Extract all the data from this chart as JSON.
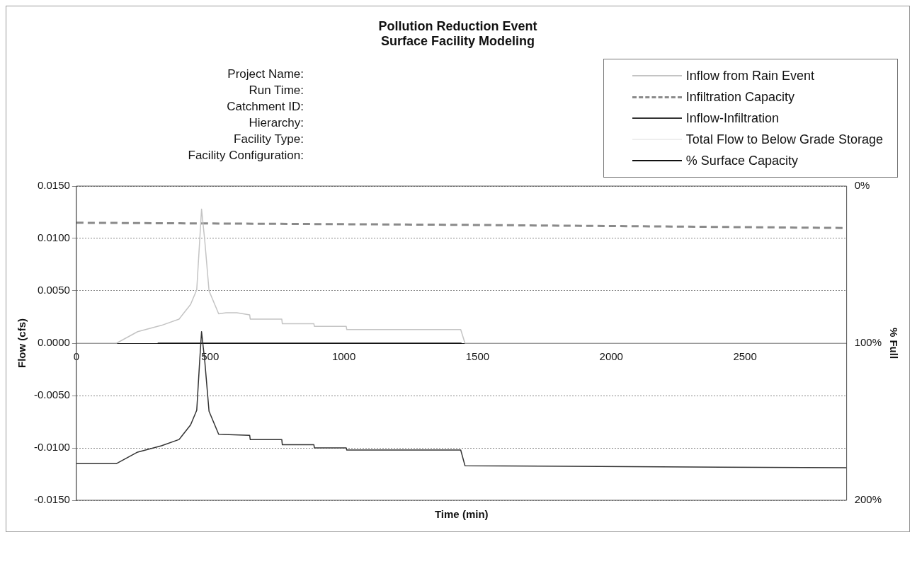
{
  "chart_data": {
    "type": "line",
    "title": "Pollution Reduction Event",
    "subtitle": "Surface Facility Modeling",
    "annotations": [
      "Project Name:",
      "Run Time:",
      "Catchment ID:",
      "Hierarchy:",
      "Facility Type:",
      "Facility Configuration:"
    ],
    "xlabel": "Time (min)",
    "ylabel": "Flow (cfs)",
    "y2label": "% Full",
    "xlim": [
      0,
      2880
    ],
    "xticks": [
      0,
      500,
      1000,
      1500,
      2000,
      2500
    ],
    "ylim": [
      -0.015,
      0.015
    ],
    "yticks": [
      {
        "value": -0.015,
        "label": "-0.0150"
      },
      {
        "value": -0.01,
        "label": "-0.0100"
      },
      {
        "value": -0.005,
        "label": "-0.0050"
      },
      {
        "value": 0,
        "label": "0.0000"
      },
      {
        "value": 0.005,
        "label": "0.0050"
      },
      {
        "value": 0.01,
        "label": "0.0100"
      },
      {
        "value": 0.015,
        "label": "0.0150"
      }
    ],
    "y2lim": [
      200,
      0
    ],
    "y2ticks": [
      {
        "value": 0,
        "label": "0%"
      },
      {
        "value": 100,
        "label": "100%"
      },
      {
        "value": 200,
        "label": "200%"
      }
    ],
    "grid": "y",
    "legend": "top right",
    "marker": "none",
    "series": [
      {
        "name": "Inflow from Rain Event",
        "color": "#c4c4c4",
        "x": [
          0,
          150,
          229,
          318,
          384,
          427,
          450,
          461,
          468,
          480,
          496,
          532,
          560,
          600,
          648,
          650,
          768,
          770,
          888,
          890,
          1009,
          1011,
          1437,
          1453,
          2880
        ],
        "values": [
          0,
          0,
          0.0011,
          0.0017,
          0.0023,
          0.0037,
          0.0051,
          0.0098,
          0.0128,
          0.0098,
          0.005,
          0.0028,
          0.0029,
          0.0029,
          0.0027,
          0.0023,
          0.0023,
          0.00185,
          0.00185,
          0.0016,
          0.0016,
          0.0013,
          0.0013,
          0,
          0
        ]
      },
      {
        "name": "Infiltration Capacity",
        "color": "#8a8a8a",
        "line_style": "dashed",
        "x": [
          0,
          1440,
          2880
        ],
        "values": [
          0.0115,
          0.0113,
          0.011
        ]
      },
      {
        "name": "Inflow-Infiltration",
        "color": "#333333",
        "x": [
          0,
          150,
          229,
          318,
          384,
          427,
          450,
          461,
          468,
          480,
          496,
          532,
          648,
          650,
          768,
          770,
          888,
          890,
          1009,
          1011,
          1437,
          1453,
          2880
        ],
        "values": [
          -0.0115,
          -0.0115,
          -0.0104,
          -0.0098,
          -0.0092,
          -0.0078,
          -0.0064,
          -0.0017,
          0.0011,
          -0.0017,
          -0.0065,
          -0.0087,
          -0.0088,
          -0.0092,
          -0.0092,
          -0.0097,
          -0.0097,
          -0.01,
          -0.01,
          -0.0102,
          -0.0102,
          -0.0117,
          -0.0119
        ]
      },
      {
        "name": "Total Flow to Below Grade Storage",
        "color": "#eeeeee"
      },
      {
        "name": "% Surface Capacity",
        "color": "#111111",
        "axis": "y2",
        "x": [
          304,
          1440
        ],
        "values": [
          100,
          100
        ]
      }
    ]
  }
}
